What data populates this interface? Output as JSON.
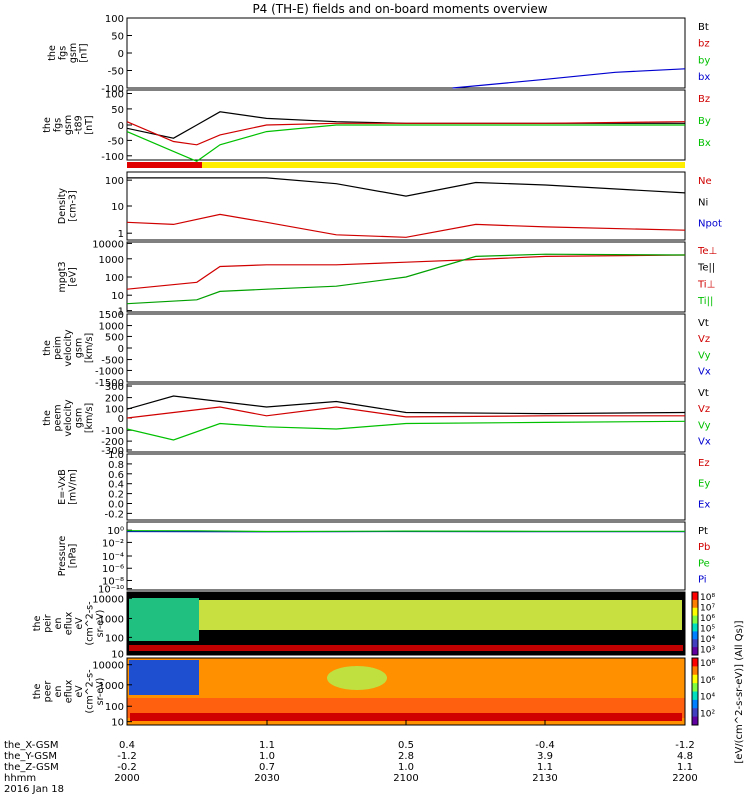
{
  "title": "P4 (TH-E) fields and on-board moments overview",
  "panels": [
    {
      "id": "fgs",
      "ylabel": [
        "the",
        "fgs",
        "gsm",
        "[nT]"
      ],
      "ticks": [
        "100",
        "50",
        "0",
        "-50",
        "-100"
      ],
      "legend": [
        {
          "t": "Bt",
          "c": "#000000"
        },
        {
          "t": "bz",
          "c": "#d00000"
        },
        {
          "t": "by",
          "c": "#00c000"
        },
        {
          "t": "bx",
          "c": "#0000d0"
        }
      ]
    },
    {
      "id": "fgs_dsl",
      "ylabel": [
        "the",
        "fgs",
        "gsm",
        "-t89",
        "[nT]"
      ],
      "ticks": [
        "100",
        "50",
        "0",
        "-50",
        "-100"
      ],
      "legend": [
        {
          "t": "Bz",
          "c": "#d00000"
        },
        {
          "t": "By",
          "c": "#00c000"
        },
        {
          "t": "Bx",
          "c": "#00c000"
        }
      ]
    },
    {
      "id": "density",
      "ylabel": [
        "Density",
        "[cm-3]"
      ],
      "ticks": [
        "100",
        "10",
        "1"
      ],
      "legend": [
        {
          "t": "Ne",
          "c": "#d00000"
        },
        {
          "t": "Ni",
          "c": "#000000"
        },
        {
          "t": "Npot",
          "c": "#0000d0"
        }
      ]
    },
    {
      "id": "temp",
      "ylabel": [
        "mpgt3",
        "[eV]"
      ],
      "ticks": [
        "10000",
        "1000",
        "100",
        "10",
        "1"
      ],
      "legend": [
        {
          "t": "Te⊥",
          "c": "#d00000"
        },
        {
          "t": "Te||",
          "c": "#000000"
        },
        {
          "t": "Ti⊥",
          "c": "#d00000"
        },
        {
          "t": "Ti||",
          "c": "#00c000"
        }
      ]
    },
    {
      "id": "peim",
      "ylabel": [
        "the",
        "peim",
        "velocity",
        "gsm",
        "[km/s]"
      ],
      "ticks": [
        "1500",
        "1000",
        "500",
        "0",
        "-500",
        "-1000",
        "-1500"
      ],
      "legend": [
        {
          "t": "Vt",
          "c": "#000000"
        },
        {
          "t": "Vz",
          "c": "#d00000"
        },
        {
          "t": "Vy",
          "c": "#00c000"
        },
        {
          "t": "Vx",
          "c": "#0000d0"
        }
      ]
    },
    {
      "id": "peem",
      "ylabel": [
        "the",
        "peem",
        "velocity",
        "gsm",
        "[km/s]"
      ],
      "ticks": [
        "300",
        "200",
        "100",
        "0",
        "-100",
        "-200",
        "-300"
      ],
      "legend": [
        {
          "t": "Vt",
          "c": "#000000"
        },
        {
          "t": "Vz",
          "c": "#d00000"
        },
        {
          "t": "Vy",
          "c": "#00c000"
        },
        {
          "t": "Vx",
          "c": "#0000d0"
        }
      ]
    },
    {
      "id": "efield",
      "ylabel": [
        "E=-VxB",
        "[mV/m]"
      ],
      "ticks": [
        "1.0",
        "0.8",
        "0.6",
        "0.4",
        "0.2",
        "0.0",
        "-0.2"
      ],
      "legend": [
        {
          "t": "Ez",
          "c": "#d00000"
        },
        {
          "t": "Ey",
          "c": "#00c000"
        },
        {
          "t": "Ex",
          "c": "#0000d0"
        }
      ]
    },
    {
      "id": "pressure",
      "ylabel": [
        "Pressure",
        "[nPa]"
      ],
      "ticks": [
        "10⁰",
        "10⁻²",
        "10⁻⁴",
        "10⁻⁶",
        "10⁻⁸",
        "10⁻¹⁰"
      ],
      "legend": [
        {
          "t": "Pt",
          "c": "#000000"
        },
        {
          "t": "Pb",
          "c": "#d00000"
        },
        {
          "t": "Pe",
          "c": "#00c000"
        },
        {
          "t": "Pi",
          "c": "#0000d0"
        }
      ]
    },
    {
      "id": "peir",
      "ylabel": [
        "the",
        "peir",
        "en",
        "eflux",
        "eV",
        "(cm^2-s-",
        "sr-eV)"
      ],
      "ticks": [
        "10000",
        "1000",
        "100",
        "10"
      ],
      "cbticks": [
        "10⁸",
        "10⁷",
        "10⁶",
        "10⁵",
        "10⁴",
        "10³"
      ]
    },
    {
      "id": "peer",
      "ylabel": [
        "the",
        "peer",
        "en",
        "eflux",
        "eV",
        "(cm^2-s-",
        "sr-eV)"
      ],
      "ticks": [
        "10000",
        "1000",
        "100",
        "10"
      ],
      "cbticks": [
        "10⁸",
        "10⁶",
        "10⁴",
        "10²"
      ]
    }
  ],
  "colorbar_label": "[eV/(cm^2-s-sr-eV)] (All Qs)]",
  "xaxis": {
    "rows": [
      "the_X-GSM",
      "the_Y-GSM",
      "the_Z-GSM",
      "hhmm",
      "2016 Jan 18"
    ],
    "cols": [
      [
        "0.4",
        "-1.2",
        "-0.2",
        "2000"
      ],
      [
        "1.1",
        "1.0",
        "0.7",
        "2030"
      ],
      [
        "0.5",
        "2.8",
        "1.0",
        "2100"
      ],
      [
        "-0.4",
        "3.9",
        "1.1",
        "2130"
      ],
      [
        "-1.2",
        "4.8",
        "1.1",
        "2200"
      ]
    ]
  },
  "chart_data": {
    "type": "line",
    "title": "P4 (TH-E) fields and on-board moments overview",
    "xlabel": "hhmm",
    "x_ticks": [
      "2000",
      "2030",
      "2100",
      "2130",
      "2200"
    ],
    "date": "2016 Jan 18",
    "series": [
      {
        "panel": "fgs",
        "name": "bx",
        "x": [
          2110,
          2130,
          2145,
          2200
        ],
        "values": [
          -100,
          -75,
          -55,
          -45
        ]
      },
      {
        "panel": "fgs_dsl",
        "name": "Bt",
        "x": [
          2000,
          2010,
          2015,
          2020,
          2030,
          2045,
          2100,
          2130,
          2200
        ],
        "values": [
          -10,
          -40,
          0,
          40,
          20,
          10,
          5,
          5,
          5
        ]
      },
      {
        "panel": "fgs_dsl",
        "name": "Bz",
        "x": [
          2000,
          2010,
          2015,
          2020,
          2030,
          2045,
          2100,
          2130,
          2200
        ],
        "values": [
          10,
          -50,
          -60,
          -30,
          0,
          5,
          5,
          5,
          10
        ]
      },
      {
        "panel": "fgs_dsl",
        "name": "By",
        "x": [
          2000,
          2010,
          2015,
          2020,
          2030,
          2045,
          2100,
          2130,
          2200
        ],
        "values": [
          -20,
          -80,
          -110,
          -60,
          -20,
          0,
          0,
          0,
          0
        ]
      },
      {
        "panel": "density",
        "name": "Ni",
        "x": [
          2000,
          2030,
          2045,
          2100,
          2115,
          2130,
          2200
        ],
        "values": [
          150,
          150,
          90,
          30,
          100,
          80,
          40
        ]
      },
      {
        "panel": "density",
        "name": "Ne",
        "x": [
          2000,
          2010,
          2020,
          2030,
          2045,
          2100,
          2115,
          2130,
          2200
        ],
        "values": [
          3,
          2.5,
          6,
          3,
          1,
          0.8,
          2.5,
          2,
          1.5
        ]
      },
      {
        "panel": "temp",
        "name": "Te||",
        "x": [
          2000,
          2015,
          2020,
          2030,
          2045,
          2100,
          2115,
          2130,
          2200
        ],
        "values": [
          20,
          50,
          400,
          500,
          500,
          700,
          1000,
          1500,
          1800
        ]
      },
      {
        "panel": "temp",
        "name": "Ti||",
        "x": [
          2000,
          2015,
          2020,
          2030,
          2045,
          2100,
          2115,
          2130,
          2200
        ],
        "values": [
          3,
          5,
          15,
          20,
          30,
          100,
          1500,
          2000,
          1800
        ]
      },
      {
        "panel": "peem",
        "name": "Vt",
        "x": [
          2000,
          2010,
          2020,
          2030,
          2045,
          2100,
          2130,
          2200
        ],
        "values": [
          80,
          200,
          150,
          100,
          150,
          50,
          40,
          50
        ]
      },
      {
        "panel": "peem",
        "name": "Vz",
        "x": [
          2000,
          2010,
          2020,
          2030,
          2045,
          2100,
          2130,
          2200
        ],
        "values": [
          0,
          50,
          100,
          20,
          100,
          10,
          20,
          20
        ]
      },
      {
        "panel": "peem",
        "name": "Vy",
        "x": [
          2000,
          2010,
          2020,
          2030,
          2045,
          2100,
          2130,
          2200
        ],
        "values": [
          -100,
          -200,
          -50,
          -80,
          -100,
          -50,
          -40,
          -30
        ]
      },
      {
        "panel": "pressure",
        "name": "Pt",
        "x": [
          2000,
          2030,
          2045,
          2100,
          2130,
          2200
        ],
        "values": [
          0.1,
          0.4,
          0.3,
          0.1,
          0.3,
          0.3
        ]
      },
      {
        "panel": "pressure",
        "name": "Pe",
        "x": [
          2000,
          2015,
          2030,
          2045,
          2100,
          2130,
          2200
        ],
        "values": [
          0.003,
          0.004,
          0.08,
          0.04,
          0.015,
          0.04,
          0.04
        ]
      }
    ]
  }
}
